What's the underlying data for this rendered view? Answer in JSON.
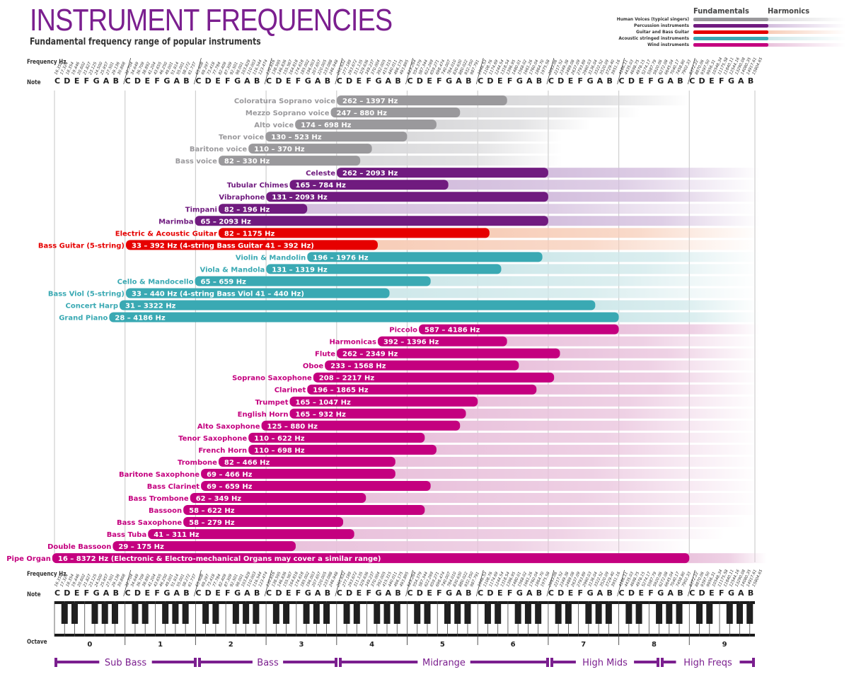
{
  "header": {
    "title": "INSTRUMENT FREQUENCIES",
    "subtitle": "Fundamental frequency range of popular instruments"
  },
  "legend": {
    "fundamentals_label": "Fundamentals",
    "harmonics_label": "Harmonics",
    "items": [
      {
        "label": "Human Voices (typical singers)",
        "color": "#9a999c",
        "fade": "#d9d9db"
      },
      {
        "label": "Percussion instruments",
        "color": "#701b7f",
        "fade": "#d3bedd"
      },
      {
        "label": "Guitar and Bass Guitar",
        "color": "#e60000",
        "fade": "#f7cdb8"
      },
      {
        "label": "Acoustic stringed instruments",
        "color": "#3aa9b3",
        "fade": "#cfe8ea"
      },
      {
        "label": "Wind instruments",
        "color": "#c4007f",
        "fade": "#e9c2dc"
      }
    ]
  },
  "axis": {
    "frequency_label": "Frequency Hz",
    "note_label": "Note",
    "octave_label": "Octave",
    "notes": [
      "C",
      "D",
      "E",
      "F",
      "G",
      "A",
      "B"
    ],
    "octaves": [
      "0",
      "1",
      "2",
      "3",
      "4",
      "5",
      "6",
      "7",
      "8",
      "9"
    ]
  },
  "ranges": [
    {
      "label": "Sub Bass"
    },
    {
      "label": "Bass"
    },
    {
      "label": "Midrange"
    },
    {
      "label": "High Mids"
    },
    {
      "label": "High Freqs"
    }
  ],
  "chart_data": {
    "type": "bar",
    "orientation": "horizontal",
    "scale": "log2",
    "title": "INSTRUMENT FREQUENCIES",
    "subtitle": "Fundamental frequency range of popular instruments",
    "xlabel": "Frequency Hz / Note / Octave",
    "xlim_hz": [
      16.352,
      7902.13
    ],
    "grid": true,
    "legend_position": "top-right",
    "x_ticks_octave_c_hz": [
      16.352,
      32.703,
      65.406,
      130.813,
      261.626,
      523.251,
      1046.5,
      2093.0,
      4186.01,
      8372.02
    ],
    "series_groups": [
      "Human Voices (typical singers)",
      "Percussion instruments",
      "Guitar and Bass Guitar",
      "Acoustic stringed instruments",
      "Wind instruments"
    ],
    "instruments": [
      {
        "name": "Coloratura Soprano voice",
        "group": 0,
        "low": 262,
        "high": 1397,
        "label": "262 – 1397 Hz",
        "harm_end": 9
      },
      {
        "name": "Mezzo Soprano voice",
        "group": 0,
        "low": 247,
        "high": 880,
        "label": "247 – 880 Hz",
        "harm_end": 8.3
      },
      {
        "name": "Alto voice",
        "group": 0,
        "low": 174,
        "high": 698,
        "label": "174 – 698 Hz",
        "harm_end": 7.6
      },
      {
        "name": "Tenor voice",
        "group": 0,
        "low": 130,
        "high": 523,
        "label": "130 – 523 Hz",
        "harm_end": 7.2
      },
      {
        "name": "Baritone voice",
        "group": 0,
        "low": 110,
        "high": 370,
        "label": "110 – 370 Hz",
        "harm_end": 7.2
      },
      {
        "name": "Bass voice",
        "group": 0,
        "low": 82,
        "high": 330,
        "label": "82 – 330 Hz",
        "harm_end": 7.2
      },
      {
        "name": "Celeste",
        "group": 1,
        "low": 262,
        "high": 2093,
        "label": "262 – 2093 Hz",
        "harm_end": 10
      },
      {
        "name": "Tubular Chimes",
        "group": 1,
        "low": 165,
        "high": 784,
        "label": "165 – 784 Hz",
        "harm_end": 10
      },
      {
        "name": "Vibraphone",
        "group": 1,
        "low": 131,
        "high": 2093,
        "label": "131 – 2093 Hz",
        "harm_end": 10
      },
      {
        "name": "Timpani",
        "group": 1,
        "low": 82,
        "high": 196,
        "label": "82 – 196 Hz",
        "harm_end": 10
      },
      {
        "name": "Marimba",
        "group": 1,
        "low": 65,
        "high": 2093,
        "label": "65 – 2093 Hz",
        "harm_end": 10
      },
      {
        "name": "Electric & Acoustic Guitar",
        "group": 2,
        "low": 82,
        "high": 1175,
        "label": "82 – 1175 Hz",
        "harm_end": 10
      },
      {
        "name": "Bass Guitar (5-string)",
        "group": 2,
        "low": 33,
        "high": 392,
        "label": "33 – 392 Hz    (4-string Bass Guitar 41 – 392 Hz)",
        "harm_end": 10
      },
      {
        "name": "Violin & Mandolin",
        "group": 3,
        "low": 196,
        "high": 1976,
        "label": "196 – 1976 Hz",
        "harm_end": 10
      },
      {
        "name": "Viola & Mandola",
        "group": 3,
        "low": 131,
        "high": 1319,
        "label": "131 – 1319 Hz",
        "harm_end": 10
      },
      {
        "name": "Cello & Mandocello",
        "group": 3,
        "low": 65,
        "high": 659,
        "label": "65 – 659 Hz",
        "harm_end": 10
      },
      {
        "name": "Bass Viol (5-string)",
        "group": 3,
        "low": 33,
        "high": 440,
        "label": "33 – 440 Hz  (4-string Bass Viol 41 – 440 Hz)",
        "harm_end": 10
      },
      {
        "name": "Concert Harp",
        "group": 3,
        "low": 31,
        "high": 3322,
        "label": "31 – 3322 Hz",
        "harm_end": 10
      },
      {
        "name": "Grand Piano",
        "group": 3,
        "low": 28,
        "high": 4186,
        "label": "28 – 4186 Hz",
        "harm_end": 10
      },
      {
        "name": "Piccolo",
        "group": 4,
        "low": 587,
        "high": 4186,
        "label": "587 – 4186 Hz",
        "harm_end": 10
      },
      {
        "name": "Harmonicas",
        "group": 4,
        "low": 392,
        "high": 1396,
        "label": "392 – 1396 Hz",
        "harm_end": 10
      },
      {
        "name": "Flute",
        "group": 4,
        "low": 262,
        "high": 2349,
        "label": "262 – 2349 Hz",
        "harm_end": 10
      },
      {
        "name": "Oboe",
        "group": 4,
        "low": 233,
        "high": 1568,
        "label": "233 – 1568 Hz",
        "harm_end": 10
      },
      {
        "name": "Soprano Saxophone",
        "group": 4,
        "low": 208,
        "high": 2217,
        "label": "208 – 2217 Hz",
        "harm_end": 10
      },
      {
        "name": "Clarinet",
        "group": 4,
        "low": 196,
        "high": 1865,
        "label": "196 – 1865 Hz",
        "harm_end": 10
      },
      {
        "name": "Trumpet",
        "group": 4,
        "low": 165,
        "high": 1047,
        "label": "165 – 1047 Hz",
        "harm_end": 10
      },
      {
        "name": "English Horn",
        "group": 4,
        "low": 165,
        "high": 932,
        "label": "165 – 932 Hz",
        "harm_end": 10
      },
      {
        "name": "Alto Saxophone",
        "group": 4,
        "low": 125,
        "high": 880,
        "label": "125 – 880 Hz",
        "harm_end": 10
      },
      {
        "name": "Tenor Saxophone",
        "group": 4,
        "low": 110,
        "high": 622,
        "label": "110 – 622 Hz",
        "harm_end": 10
      },
      {
        "name": "French Horn",
        "group": 4,
        "low": 110,
        "high": 698,
        "label": "110 – 698 Hz",
        "harm_end": 10
      },
      {
        "name": "Trombone",
        "group": 4,
        "low": 82,
        "high": 466,
        "label": "82 – 466 Hz",
        "harm_end": 10
      },
      {
        "name": "Baritone Saxophone",
        "group": 4,
        "low": 69,
        "high": 466,
        "label": "69 – 466 Hz",
        "harm_end": 10
      },
      {
        "name": "Bass Clarinet",
        "group": 4,
        "low": 69,
        "high": 659,
        "label": "69 – 659 Hz",
        "harm_end": 10
      },
      {
        "name": "Bass Trombone",
        "group": 4,
        "low": 62,
        "high": 349,
        "label": "62 – 349 Hz",
        "harm_end": 10
      },
      {
        "name": "Bassoon",
        "group": 4,
        "low": 58,
        "high": 622,
        "label": "58 – 622 Hz",
        "harm_end": 10
      },
      {
        "name": "Bass Saxophone",
        "group": 4,
        "low": 58,
        "high": 279,
        "label": "58 – 279 Hz",
        "harm_end": 9.8
      },
      {
        "name": "Bass Tuba",
        "group": 4,
        "low": 41,
        "high": 311,
        "label": "41 – 311 Hz",
        "harm_end": 9.5
      },
      {
        "name": "Double Bassoon",
        "group": 4,
        "low": 29,
        "high": 175,
        "label": "29 – 175 Hz",
        "harm_end": 9
      },
      {
        "name": "Pipe Organ",
        "group": 4,
        "low": 16,
        "high": 8372,
        "label": "16 – 8372 Hz    (Electronic & Electro-mechanical Organs may cover a similar range)",
        "harm_end": 10.1
      }
    ]
  }
}
